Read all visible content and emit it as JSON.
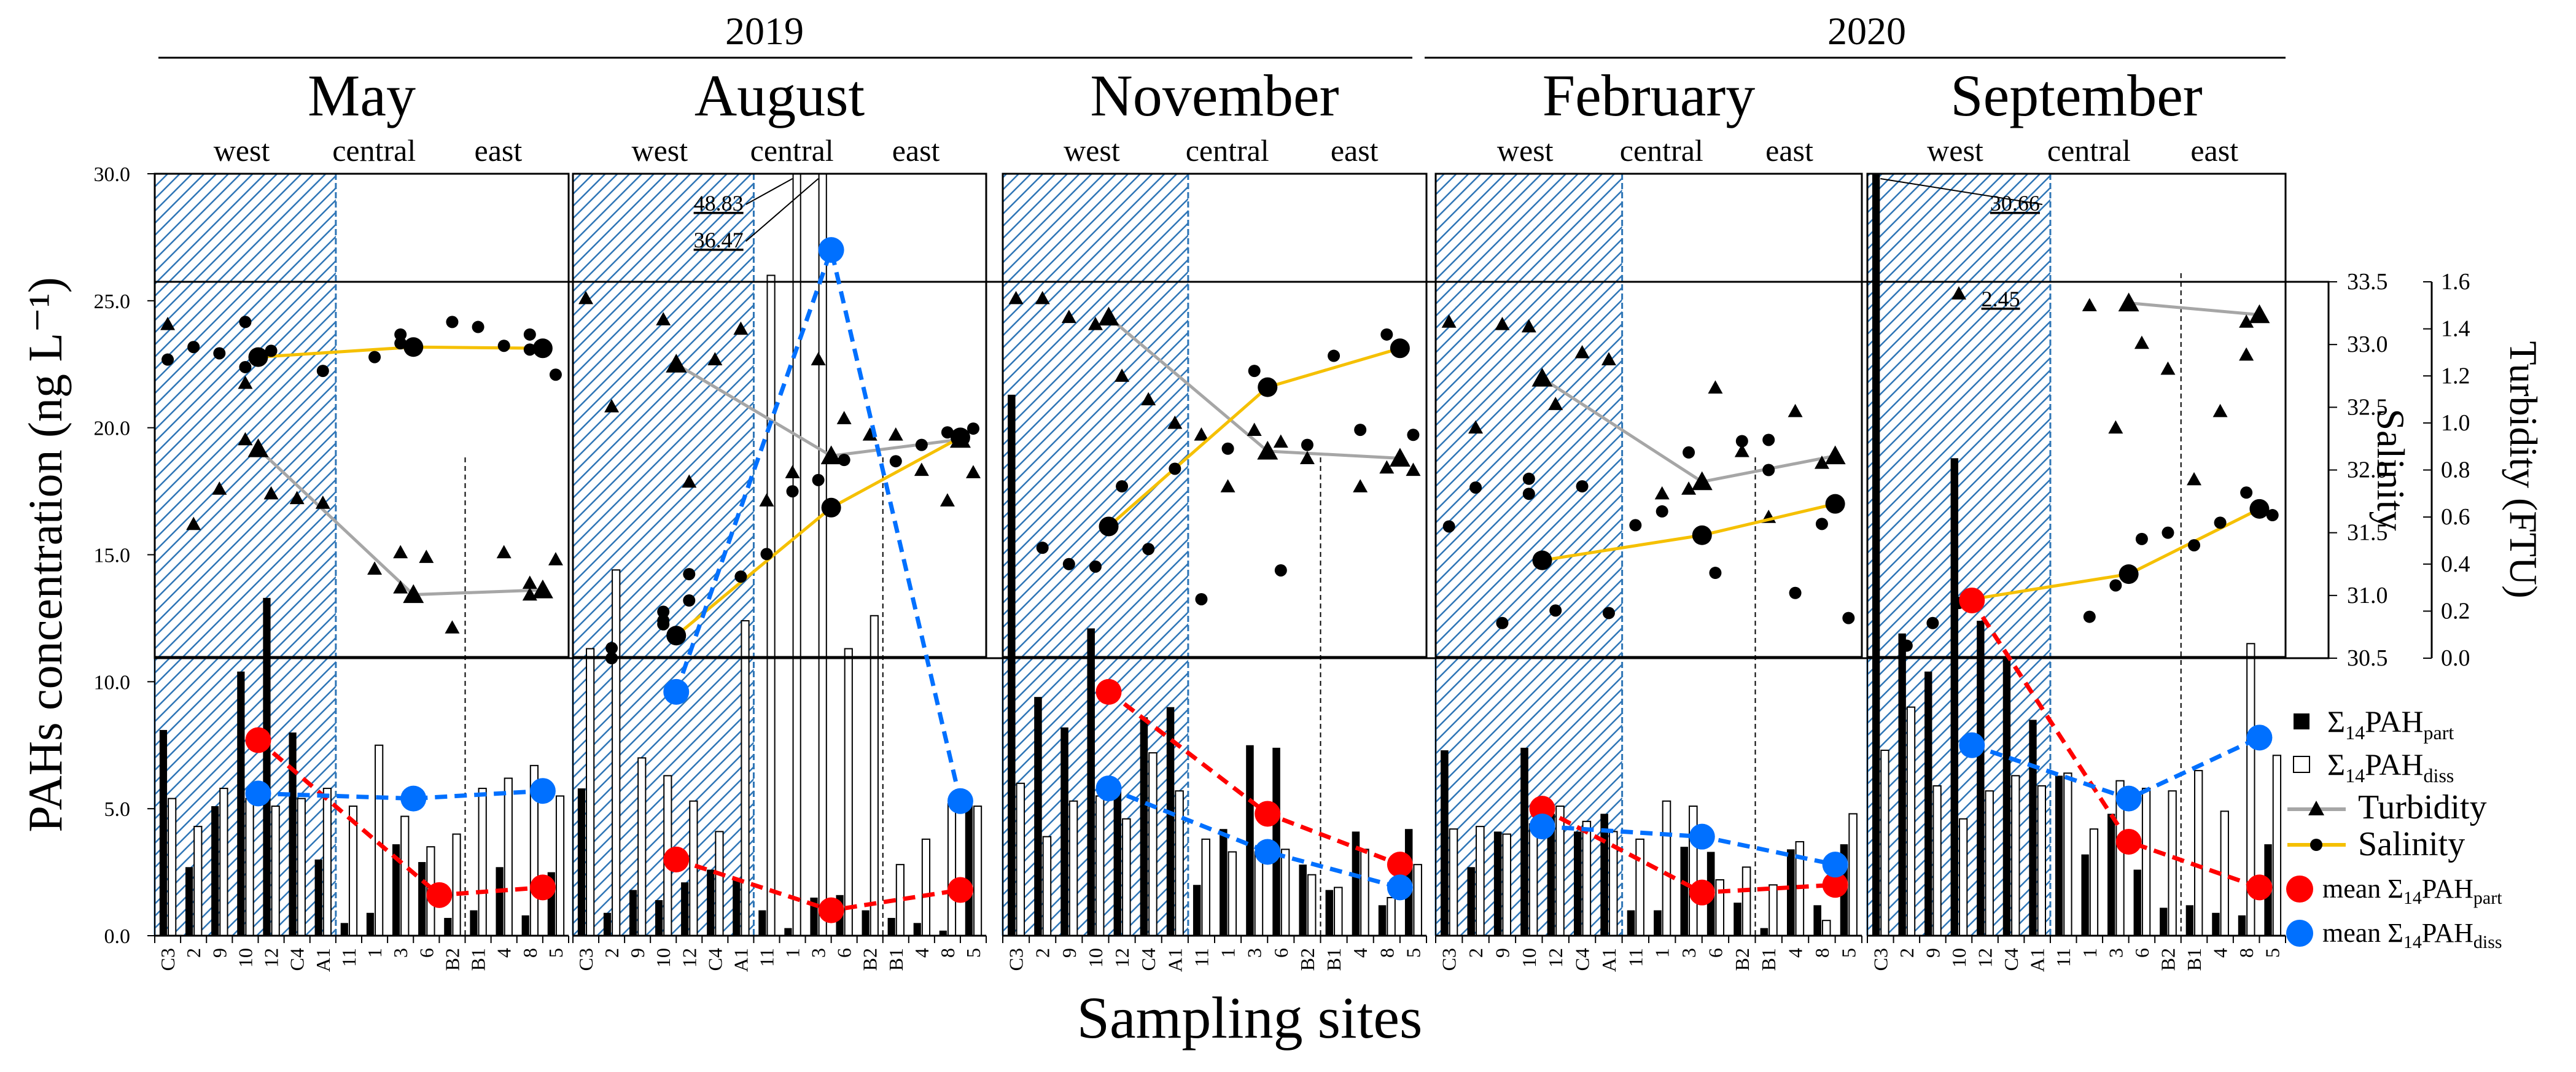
{
  "chart_data": {
    "type": "bar",
    "years": [
      {
        "label": "2019",
        "panels": [
          0,
          1,
          2
        ]
      },
      {
        "label": "2020",
        "panels": [
          3,
          4
        ]
      }
    ],
    "regions": [
      "west",
      "central",
      "east"
    ],
    "categories": [
      "C3",
      "2",
      "9",
      "10",
      "12",
      "C4",
      "A1",
      "11",
      "1",
      "3",
      "6",
      "B2",
      "B1",
      "4",
      "8",
      "5"
    ],
    "ylabel": "PAHs concentration (ng L⁻¹)",
    "xlabel": "Sampling sites",
    "ylim": [
      0,
      30
    ],
    "yticks": [
      "0.0",
      "5.0",
      "10.0",
      "15.0",
      "20.0",
      "25.0",
      "30.0"
    ],
    "salinity": {
      "label": "Salinity",
      "lim": [
        30.5,
        33.5
      ],
      "ticks": [
        "30.5",
        "31.0",
        "31.5",
        "32.0",
        "32.5",
        "33.0",
        "33.5"
      ]
    },
    "turbidity": {
      "label": "Turbidity (FTU)",
      "lim": [
        0,
        1.6
      ],
      "ticks": [
        "0.0",
        "0.2",
        "0.4",
        "0.6",
        "0.8",
        "1.0",
        "1.2",
        "1.4",
        "1.6"
      ]
    },
    "legend": {
      "part_base": "Σ",
      "part_sub1": "14",
      "part_main": "PAH",
      "part_sub2": "part",
      "diss_base": "Σ",
      "diss_sub1": "14",
      "diss_main": "PAH",
      "diss_sub2": "diss",
      "turbidity": "Turbidity",
      "salinity": "Salinity",
      "mean_part_prefix": "mean Σ",
      "mean_part_sub1": "14",
      "mean_part_main": "PAH",
      "mean_part_sub2": "part",
      "mean_diss_prefix": "mean Σ",
      "mean_diss_sub1": "14",
      "mean_diss_main": "PAH",
      "mean_diss_sub2": "diss"
    },
    "colors": {
      "part": "#000000",
      "diss": "#ffffff",
      "turbidity": "#a6a6a6",
      "salinity": "#f5c000",
      "mean_part": "#ff0000",
      "mean_diss": "#0070ff",
      "hatch": "#2e75b6"
    },
    "panels": [
      {
        "month": "May",
        "part": [
          8.1,
          2.7,
          5.1,
          10.4,
          13.3,
          8.0,
          3.0,
          0.5,
          0.9,
          3.6,
          2.9,
          0.7,
          1.0,
          2.7,
          0.8,
          2.5
        ],
        "diss": [
          5.4,
          4.3,
          5.8,
          5.4,
          5.1,
          5.4,
          5.8,
          5.1,
          7.5,
          4.7,
          3.5,
          4.0,
          5.8,
          6.2,
          6.7,
          5.5
        ],
        "mean_part": {
          "x": [
            3.5,
            10.5,
            14.5
          ],
          "y": [
            7.7,
            1.6,
            1.9
          ]
        },
        "mean_diss": {
          "x": [
            3.5,
            9.5,
            14.5
          ],
          "y": [
            5.6,
            5.4,
            5.7
          ]
        },
        "salinity_pts": {
          "x": [
            0,
            1,
            2,
            3,
            3,
            4,
            6,
            8,
            9,
            9,
            11,
            12,
            13,
            14,
            14,
            15
          ],
          "y": [
            32.88,
            32.98,
            32.93,
            32.82,
            33.18,
            32.95,
            32.79,
            32.9,
            33.08,
            33.01,
            33.18,
            33.14,
            32.99,
            33.08,
            32.96,
            32.76
          ]
        },
        "salinity_mean": {
          "x": [
            3.5,
            9.5,
            14.5
          ],
          "y": [
            32.9,
            32.98,
            32.97
          ]
        },
        "salinity_annot": [],
        "turbidity_pts": {
          "x": [
            0,
            1,
            2,
            3,
            3,
            4,
            5,
            6,
            8,
            9,
            9,
            10,
            11,
            13,
            14,
            14,
            15
          ],
          "y": [
            1.42,
            0.57,
            0.72,
            1.17,
            0.93,
            0.7,
            0.68,
            0.66,
            0.38,
            0.45,
            0.3,
            0.43,
            0.13,
            0.45,
            0.27,
            0.32,
            0.42
          ]
        },
        "turbidity_mean": {
          "x": [
            3.5,
            9.5,
            14.5
          ],
          "y": [
            0.89,
            0.27,
            0.29
          ]
        },
        "annotations": []
      },
      {
        "month": "August",
        "part": [
          5.8,
          0.9,
          1.8,
          1.4,
          2.1,
          2.6,
          2.2,
          1.0,
          0.3,
          1.5,
          1.6,
          1.0,
          0.7,
          0.5,
          0.2,
          5.2
        ],
        "diss": [
          11.3,
          14.4,
          7.0,
          6.3,
          5.3,
          4.1,
          12.4,
          26.0,
          48.83,
          36.47,
          11.3,
          12.6,
          2.8,
          3.8,
          5.2,
          5.1
        ],
        "mean_part": {
          "x": [
            3.5,
            9.5,
            14.5
          ],
          "y": [
            3.0,
            1.0,
            1.8
          ]
        },
        "mean_diss": {
          "x": [
            3.5,
            9.5,
            14.5
          ],
          "y": [
            9.6,
            27.0,
            5.3
          ]
        },
        "salinity_pts": {
          "x": [
            1,
            1,
            3,
            3,
            3,
            4,
            4,
            6,
            7,
            8,
            9,
            10,
            12,
            13,
            14,
            15
          ],
          "y": [
            30.5,
            30.58,
            30.77,
            30.8,
            30.87,
            30.96,
            31.17,
            31.15,
            31.33,
            31.83,
            31.92,
            32.08,
            32.07,
            32.2,
            32.3,
            32.33
          ]
        },
        "salinity_mean": {
          "x": [
            3.5,
            9.5,
            14.5
          ],
          "y": [
            30.68,
            31.7,
            32.26
          ]
        },
        "salinity_annot": [],
        "turbidity_pts": {
          "x": [
            0,
            1,
            3,
            4,
            5,
            6,
            7,
            8,
            9,
            10,
            11,
            12,
            13,
            14,
            15
          ],
          "y": [
            1.53,
            1.07,
            1.44,
            0.75,
            1.27,
            1.4,
            0.67,
            0.79,
            1.27,
            1.02,
            0.95,
            0.95,
            0.8,
            0.67,
            0.79
          ]
        },
        "turbidity_mean": {
          "x": [
            3.5,
            9.5,
            14.5
          ],
          "y": [
            1.25,
            0.86,
            0.93
          ]
        },
        "annotations": [
          {
            "value": "48.83",
            "bar": 8
          },
          {
            "value": "36.47",
            "bar": 9
          }
        ]
      },
      {
        "month": "November",
        "part": [
          21.3,
          9.4,
          8.2,
          12.1,
          5.8,
          8.6,
          9.0,
          2.0,
          4.2,
          7.5,
          7.4,
          2.8,
          1.8,
          4.1,
          1.2,
          4.2
        ],
        "diss": [
          6.0,
          3.9,
          5.3,
          5.5,
          4.6,
          7.2,
          5.7,
          3.8,
          3.3,
          3.3,
          3.4,
          2.4,
          1.9,
          3.4,
          1.5,
          2.8
        ],
        "mean_part": {
          "x": [
            3.5,
            9.5,
            14.5
          ],
          "y": [
            9.6,
            4.8,
            2.8
          ]
        },
        "mean_diss": {
          "x": [
            3.5,
            9.5,
            14.5
          ],
          "y": [
            5.8,
            3.3,
            1.9
          ]
        },
        "salinity_pts": {
          "x": [
            1,
            2,
            3,
            4,
            5,
            6,
            7,
            8,
            9,
            10,
            11,
            12,
            13,
            14,
            15
          ],
          "y": [
            31.38,
            31.25,
            31.23,
            31.87,
            31.37,
            32.01,
            30.97,
            32.17,
            32.79,
            31.2,
            32.2,
            32.91,
            32.32,
            33.08,
            32.28
          ]
        },
        "salinity_mean": {
          "x": [
            3.5,
            9.5,
            14.5
          ],
          "y": [
            31.55,
            32.66,
            32.97
          ]
        },
        "salinity_annot": [],
        "turbidity_pts": {
          "x": [
            0,
            1,
            2,
            3,
            4,
            5,
            6,
            7,
            8,
            9,
            10,
            11,
            13,
            14,
            15
          ],
          "y": [
            1.53,
            1.53,
            1.45,
            1.42,
            1.2,
            1.1,
            1.0,
            0.95,
            0.73,
            0.97,
            0.92,
            0.85,
            0.73,
            0.81,
            0.8
          ]
        },
        "turbidity_mean": {
          "x": [
            3.5,
            9.5,
            14.5
          ],
          "y": [
            1.45,
            0.88,
            0.85
          ]
        },
        "annotations": []
      },
      {
        "month": "February",
        "part": [
          7.3,
          2.7,
          4.1,
          7.4,
          4.8,
          4.1,
          4.8,
          1.0,
          1.0,
          3.5,
          3.3,
          1.3,
          0.3,
          3.4,
          1.2,
          3.6
        ],
        "diss": [
          4.2,
          4.3,
          4.0,
          4.4,
          5.1,
          4.5,
          4.1,
          3.8,
          5.3,
          5.1,
          2.2,
          2.7,
          2.0,
          3.7,
          0.6,
          4.8
        ],
        "mean_part": {
          "x": [
            3.5,
            9.5,
            14.5
          ],
          "y": [
            5.0,
            1.7,
            2.0
          ]
        },
        "mean_diss": {
          "x": [
            3.5,
            9.5,
            14.5
          ],
          "y": [
            4.3,
            3.9,
            2.8
          ]
        },
        "salinity_pts": {
          "x": [
            0,
            1,
            2,
            3,
            3,
            4,
            5,
            6,
            7,
            8,
            9,
            10,
            11,
            12,
            12,
            13,
            14,
            15
          ],
          "y": [
            31.55,
            31.86,
            30.78,
            31.93,
            31.81,
            30.88,
            31.87,
            30.86,
            31.56,
            31.67,
            32.14,
            31.18,
            32.23,
            32.24,
            32.0,
            31.02,
            31.57,
            30.82
          ]
        },
        "salinity_mean": {
          "x": [
            3.5,
            9.5,
            14.5
          ],
          "y": [
            31.28,
            31.48,
            31.73
          ]
        },
        "salinity_annot": [],
        "turbidity_pts": {
          "x": [
            0,
            1,
            2,
            3,
            4,
            5,
            6,
            8,
            9,
            10,
            11,
            12,
            13,
            14
          ],
          "y": [
            1.43,
            0.98,
            1.42,
            1.41,
            1.08,
            1.3,
            1.27,
            0.7,
            0.72,
            1.15,
            0.88,
            0.6,
            1.05,
            0.83
          ]
        },
        "turbidity_mean": {
          "x": [
            3.5,
            9.5,
            14.5
          ],
          "y": [
            1.19,
            0.75,
            0.86
          ]
        },
        "annotations": []
      },
      {
        "month": "September",
        "part": [
          30.66,
          11.9,
          10.4,
          18.8,
          12.4,
          11.0,
          8.5,
          6.3,
          3.2,
          4.8,
          2.6,
          1.1,
          1.2,
          0.9,
          0.8,
          3.6
        ],
        "diss": [
          7.3,
          9.0,
          5.9,
          4.6,
          5.7,
          6.3,
          5.9,
          6.4,
          4.2,
          6.1,
          5.8,
          5.7,
          6.5,
          4.9,
          11.5,
          7.1
        ],
        "mean_part": {
          "x": [
            3.5,
            9.5,
            14.5
          ],
          "y": [
            13.2,
            3.7,
            1.9
          ]
        },
        "mean_diss": {
          "x": [
            3.5,
            9.5,
            14.5
          ],
          "y": [
            7.5,
            5.4,
            7.8
          ]
        },
        "salinity_pts": {
          "x": [
            1,
            2,
            3,
            8,
            9,
            10,
            11,
            12,
            13,
            14,
            15
          ],
          "y": [
            30.6,
            30.78,
            30.94,
            30.83,
            31.08,
            31.45,
            31.5,
            31.4,
            31.58,
            31.82,
            31.64
          ]
        },
        "salinity_mean": {
          "x": [
            3.5,
            9.5,
            14.5
          ],
          "y": [
            30.97,
            31.17,
            31.69
          ]
        },
        "salinity_annot": [
          {
            "value": "2.45",
            "x": 4.6,
            "y": 2.45
          }
        ],
        "turbidity_pts": {
          "x": [
            3,
            8,
            9,
            10,
            11,
            12,
            13,
            14,
            14
          ],
          "y": [
            1.55,
            1.5,
            0.98,
            1.34,
            1.23,
            0.76,
            1.05,
            1.43,
            1.29
          ]
        },
        "turbidity_mean": {
          "x": [
            9.5,
            14.5
          ],
          "y": [
            1.51,
            1.46
          ]
        },
        "annotations": [
          {
            "value": "30.66",
            "bar": 0
          }
        ]
      }
    ]
  }
}
